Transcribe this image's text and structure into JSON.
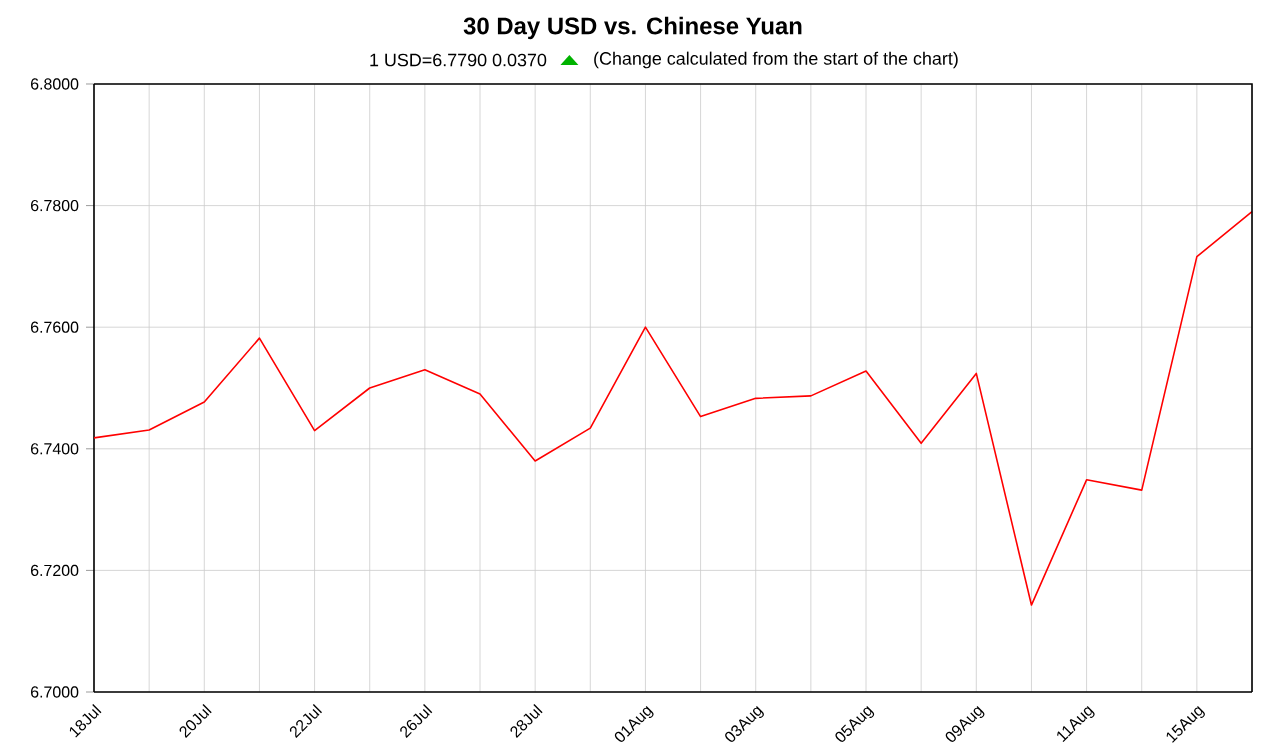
{
  "chart_data": {
    "type": "line",
    "title": "30 Day USD vs. Chinese Yuan",
    "subtitle": "1 USD=6.7790  0.0370",
    "annotations": [
      "(Change calculated from the start of the chart)"
    ],
    "categories": [
      "18Jul",
      null,
      "20Jul",
      null,
      "22Jul",
      null,
      "26Jul",
      null,
      "28Jul",
      null,
      "01Aug",
      null,
      "03Aug",
      null,
      "05Aug",
      null,
      "09Aug",
      null,
      "11Aug",
      null,
      "15Aug",
      null
    ],
    "series": [
      {
        "color": "#ff0000",
        "values": [
          6.7418,
          6.7431,
          6.7477,
          6.7582,
          6.743,
          6.75,
          6.753,
          6.749,
          6.738,
          6.7434,
          6.76,
          6.7453,
          6.7483,
          6.7487,
          6.7528,
          6.7409,
          6.7524,
          6.7143,
          6.7349,
          6.7332,
          6.7716,
          6.779
        ]
      }
    ],
    "ylim": [
      6.7,
      6.8
    ],
    "yticks": [
      {
        "value": 6.7,
        "label": "6.7000"
      },
      {
        "value": 6.72,
        "label": "6.7200"
      },
      {
        "value": 6.74,
        "label": "6.7400"
      },
      {
        "value": 6.76,
        "label": "6.7600"
      },
      {
        "value": 6.78,
        "label": "6.7800"
      },
      {
        "value": 6.8,
        "label": "6.8000"
      }
    ],
    "grid": true,
    "marker": "none",
    "line_style": "solid"
  }
}
